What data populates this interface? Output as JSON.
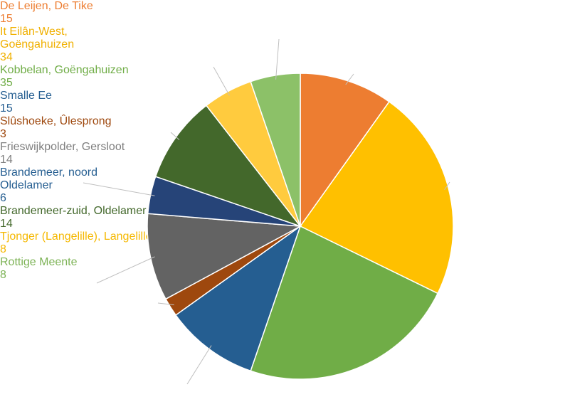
{
  "chart_data": {
    "type": "pie",
    "categories": [
      "De Leijen, De Tike",
      "It Eilân-West, Goëngahuizen",
      "Kobbelan, Goëngahuizen",
      "Smalle Ee",
      "Slûshoeke, Ûlesprong",
      "Frieswijkpolder, Gersloot",
      "Brandemeer, noord Oldelamer",
      "Brandemeer-zuid, Oldelamer",
      "Tjonger (Langelille), Langelille",
      "Rottige Meente"
    ],
    "values": [
      15,
      34,
      35,
      15,
      3,
      14,
      6,
      14,
      8,
      8
    ],
    "colors": [
      "#ED7D31",
      "#FFC000",
      "#70AD47",
      "#255E91",
      "#9E480E",
      "#636363",
      "#264478",
      "#43682B",
      "#FFCB3E",
      "#8CC168"
    ]
  }
}
